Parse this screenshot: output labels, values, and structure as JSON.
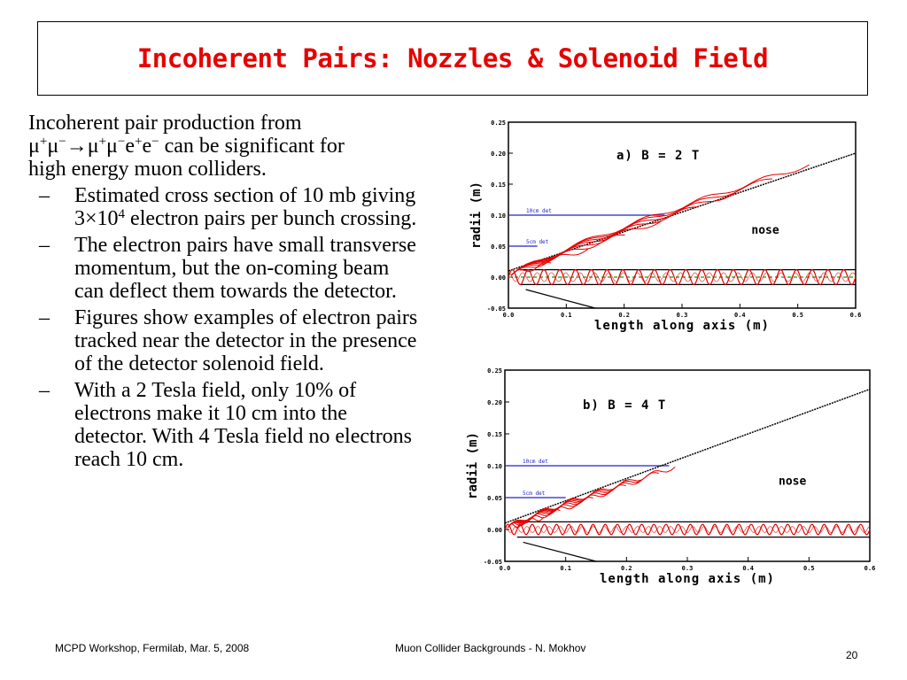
{
  "slide": {
    "title": "Incoherent Pairs: Nozzles & Solenoid Field",
    "lead": {
      "line1": "Incoherent pair production from",
      "reaction_mu1": "μ",
      "reaction_sup1": "+",
      "reaction_mu2": "μ",
      "reaction_sup2": "−",
      "reaction_arrow": "→",
      "reaction_mu3": "μ",
      "reaction_sup3": "+",
      "reaction_mu4": "μ",
      "reaction_sup4": "−",
      "reaction_e1": "e",
      "reaction_sup5": "+",
      "reaction_e2": "e",
      "reaction_sup6": "−",
      "line2_rest": " can be significant for",
      "line3": "high energy muon colliders."
    },
    "bullet_dash": "–",
    "bullets": {
      "b1_pre": "Estimated cross section of 10 mb giving 3×10",
      "b1_sup": "4",
      "b1_post": " electron pairs per bunch crossing.",
      "b2": "The electron pairs have small transverse momentum, but the on-coming beam can deflect them towards the detector.",
      "b3": "Figures show examples of electron pairs tracked near the detector in the presence of the detector solenoid field.",
      "b4": "With a 2 Tesla field, only 10% of electrons make it 10 cm into the detector.  With 4 Tesla field no electrons reach 10 cm."
    },
    "footer": {
      "left": "MCPD Workshop, Fermilab, Mar. 5, 2008",
      "center": "Muon Collider Backgrounds -  N. Mokhov",
      "page": "20"
    }
  },
  "chart_data": [
    {
      "type": "line",
      "title": "a) B = 2 T",
      "xlabel": "length along axis (m)",
      "ylabel": "radii (m)",
      "xlim": [
        0.0,
        0.6
      ],
      "ylim": [
        -0.05,
        0.25
      ],
      "x_ticks": [
        "0.0",
        "0.1",
        "0.2",
        "0.3",
        "0.4",
        "0.5",
        "0.6"
      ],
      "y_ticks": [
        "-0.05",
        "0.00",
        "0.05",
        "0.10",
        "0.15",
        "0.20",
        "0.25"
      ],
      "annotations": [
        {
          "text": "10cm det",
          "y": 0.1
        },
        {
          "text": "5cm det",
          "y": 0.05
        },
        {
          "text": "nose",
          "x": 0.42,
          "y": 0.07
        }
      ],
      "series": [
        {
          "values": [
            [
              0.0,
              0.01
            ],
            [
              0.6,
              0.2
            ]
          ],
          "color": "#000000"
        },
        {
          "values": [
            [
              0.0,
              0.0
            ],
            [
              0.6,
              0.0
            ]
          ],
          "color": "#00aa00"
        }
      ],
      "red_tracks": {
        "color": "#e60000",
        "envelope_max_x": 0.52,
        "envelope_max_y": 0.185,
        "helix_amplitude": 0.012,
        "helix_cycles": 22
      }
    },
    {
      "type": "line",
      "title": "b) B = 4 T",
      "xlabel": "length along axis (m)",
      "ylabel": "radii (m)",
      "xlim": [
        0.0,
        0.6
      ],
      "ylim": [
        -0.05,
        0.25
      ],
      "x_ticks": [
        "0.0",
        "0.1",
        "0.2",
        "0.3",
        "0.4",
        "0.5",
        "0.6"
      ],
      "y_ticks": [
        "-0.05",
        "0.00",
        "0.05",
        "0.10",
        "0.15",
        "0.20",
        "0.25"
      ],
      "annotations": [
        {
          "text": "10cm det",
          "y": 0.1
        },
        {
          "text": "5cm det",
          "y": 0.05
        },
        {
          "text": "nose",
          "x": 0.45,
          "y": 0.07
        }
      ],
      "series": [
        {
          "values": [
            [
              0.0,
              0.01
            ],
            [
              0.6,
              0.22
            ]
          ],
          "color": "#000000"
        }
      ],
      "red_tracks": {
        "color": "#e60000",
        "envelope_max_x": 0.28,
        "envelope_max_y": 0.1,
        "helix_amplitude": 0.008,
        "helix_cycles": 30
      }
    }
  ]
}
